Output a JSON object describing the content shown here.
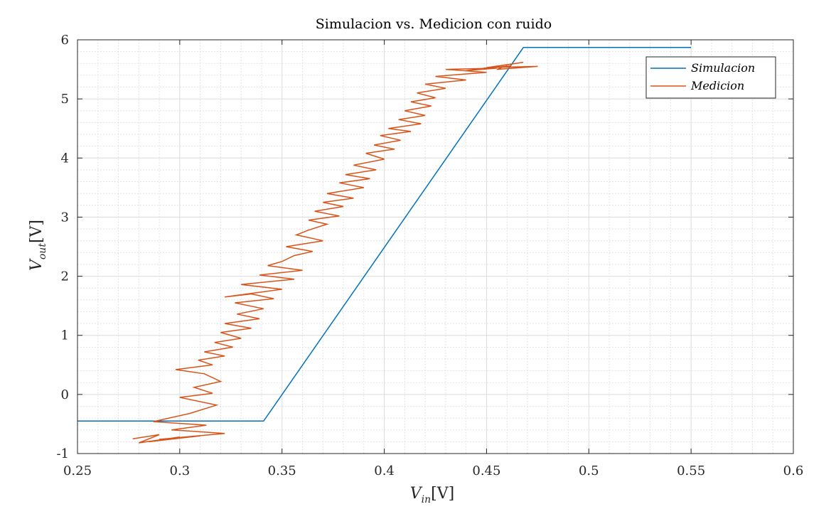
{
  "chart_data": {
    "type": "line",
    "title": "Simulacion vs. Medicion con ruido",
    "xlabel": {
      "main": "V",
      "sub": "in",
      "unit": "[V]"
    },
    "ylabel": {
      "main": "V",
      "sub": "out",
      "unit": "[V]"
    },
    "xlim": [
      0.25,
      0.6
    ],
    "ylim": [
      -1,
      6
    ],
    "xticks": [
      0.25,
      0.3,
      0.35,
      0.4,
      0.45,
      0.5,
      0.55,
      0.6
    ],
    "xtick_labels": [
      "0.25",
      "0.3",
      "0.35",
      "0.4",
      "0.45",
      "0.5",
      "0.55",
      "0.6"
    ],
    "yticks": [
      -1,
      0,
      1,
      2,
      3,
      4,
      5,
      6
    ],
    "ytick_labels": [
      "-1",
      "0",
      "1",
      "2",
      "3",
      "4",
      "5",
      "6"
    ],
    "grid": true,
    "minor_grid": true,
    "legend_position": "top-right",
    "series": [
      {
        "name": "Simulacion",
        "color": "#0072BD",
        "x": [
          0.25,
          0.341,
          0.468,
          0.55
        ],
        "y": [
          -0.45,
          -0.45,
          5.87,
          5.87
        ]
      },
      {
        "name": "Medicion",
        "color": "#D95319",
        "x": [
          0.277,
          0.29,
          0.28,
          0.3,
          0.285,
          0.31,
          0.29,
          0.322,
          0.296,
          0.313,
          0.287,
          0.305,
          0.318,
          0.3,
          0.316,
          0.307,
          0.32,
          0.312,
          0.298,
          0.316,
          0.309,
          0.322,
          0.312,
          0.326,
          0.317,
          0.33,
          0.32,
          0.335,
          0.322,
          0.339,
          0.328,
          0.341,
          0.327,
          0.346,
          0.335,
          0.322,
          0.35,
          0.33,
          0.356,
          0.339,
          0.36,
          0.343,
          0.35,
          0.356,
          0.365,
          0.352,
          0.37,
          0.357,
          0.363,
          0.372,
          0.363,
          0.378,
          0.366,
          0.38,
          0.37,
          0.385,
          0.372,
          0.39,
          0.378,
          0.393,
          0.381,
          0.396,
          0.385,
          0.4,
          0.391,
          0.405,
          0.395,
          0.408,
          0.398,
          0.413,
          0.402,
          0.418,
          0.407,
          0.42,
          0.41,
          0.423,
          0.413,
          0.425,
          0.416,
          0.43,
          0.42,
          0.44,
          0.425,
          0.45,
          0.43,
          0.455,
          0.44,
          0.462,
          0.445,
          0.468,
          0.45,
          0.475,
          0.455,
          0.46
        ],
        "y": [
          -0.75,
          -0.68,
          -0.82,
          -0.72,
          -0.8,
          -0.7,
          -0.76,
          -0.66,
          -0.6,
          -0.52,
          -0.46,
          -0.32,
          -0.18,
          -0.05,
          0.02,
          0.12,
          0.22,
          0.35,
          0.42,
          0.5,
          0.58,
          0.65,
          0.72,
          0.8,
          0.88,
          0.95,
          1.05,
          1.12,
          1.2,
          1.28,
          1.36,
          1.45,
          1.55,
          1.62,
          1.7,
          1.65,
          1.78,
          1.86,
          1.95,
          2.02,
          2.1,
          2.18,
          2.25,
          2.35,
          2.42,
          2.5,
          2.6,
          2.7,
          2.78,
          2.88,
          2.95,
          3.02,
          3.1,
          3.18,
          3.25,
          3.32,
          3.4,
          3.5,
          3.58,
          3.65,
          3.72,
          3.8,
          3.88,
          3.98,
          4.08,
          4.15,
          4.22,
          4.3,
          4.38,
          4.45,
          4.5,
          4.58,
          4.65,
          4.72,
          4.8,
          4.88,
          4.95,
          5.02,
          5.1,
          5.18,
          5.25,
          5.32,
          5.38,
          5.45,
          5.5,
          5.52,
          5.48,
          5.56,
          5.5,
          5.62,
          5.53,
          5.55,
          5.5,
          5.56
        ]
      }
    ]
  }
}
